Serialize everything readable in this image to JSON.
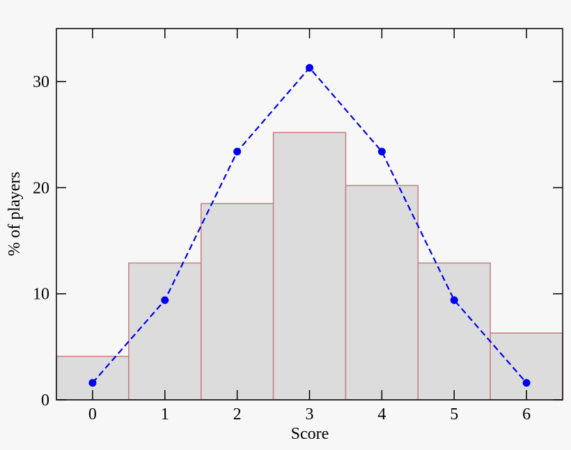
{
  "chart_data": {
    "type": "histogram",
    "x_label": "Score",
    "y_label": "% of players",
    "bins": [
      -0.5,
      0.5,
      1.5,
      2.5,
      3.5,
      4.5,
      5.5,
      6.5
    ],
    "values": [
      4.1,
      12.9,
      18.5,
      25.2,
      20.2,
      12.9,
      6.3
    ],
    "color": "#dcdcdc",
    "edge_color": "#c08080",
    "line": {
      "x": [
        0,
        1,
        2,
        3,
        4,
        5,
        6
      ],
      "values": [
        1.6,
        9.4,
        23.4,
        31.3,
        23.4,
        9.4,
        1.6
      ],
      "color": "#0000ee"
    },
    "xlim": [
      -0.5,
      6.5
    ],
    "ylim": [
      0,
      35
    ],
    "xticks": [
      0,
      1,
      2,
      3,
      4,
      5,
      6
    ],
    "yticks": [
      0,
      10,
      20,
      30
    ]
  }
}
